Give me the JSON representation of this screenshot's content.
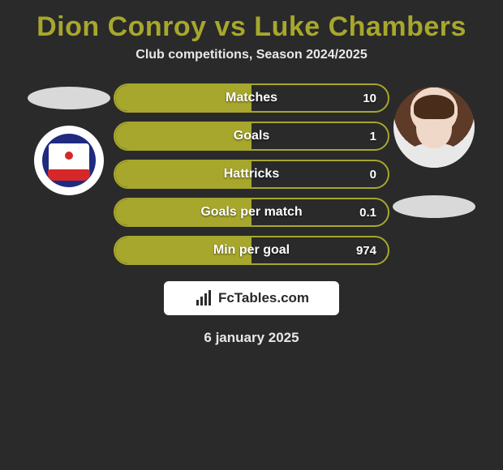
{
  "title": {
    "text": "Dion Conroy vs Luke Chambers",
    "color": "#a7a72d",
    "fontsize": 34
  },
  "subtitle": {
    "text": "Club competitions, Season 2024/2025",
    "color": "#e8e8e8"
  },
  "left": {
    "ellipse_color": "#d9d9d9",
    "badge": {
      "outer": "#ffffff",
      "inner": "#1f2a80",
      "accent": "#d62828",
      "name": "crawley-town-badge"
    }
  },
  "right": {
    "photo_name": "luke-chambers-photo",
    "ellipse_color": "#d9d9d9"
  },
  "stats": {
    "bar_fill_color": "#a7a72d",
    "bar_border_color": "#a7a72d",
    "bar_bg_color": "transparent",
    "rows": [
      {
        "label": "Matches",
        "left": "",
        "right": "10",
        "left_pct": 50,
        "right_pct": 50
      },
      {
        "label": "Goals",
        "left": "",
        "right": "1",
        "left_pct": 50,
        "right_pct": 50
      },
      {
        "label": "Hattricks",
        "left": "",
        "right": "0",
        "left_pct": 50,
        "right_pct": 50
      },
      {
        "label": "Goals per match",
        "left": "",
        "right": "0.1",
        "left_pct": 50,
        "right_pct": 50
      },
      {
        "label": "Min per goal",
        "left": "",
        "right": "974",
        "left_pct": 50,
        "right_pct": 50
      }
    ]
  },
  "brand": {
    "text": "FcTables.com",
    "box_bg": "#ffffff",
    "text_color": "#2a2a2a"
  },
  "date": "6 january 2025",
  "background_color": "#2a2a2a"
}
